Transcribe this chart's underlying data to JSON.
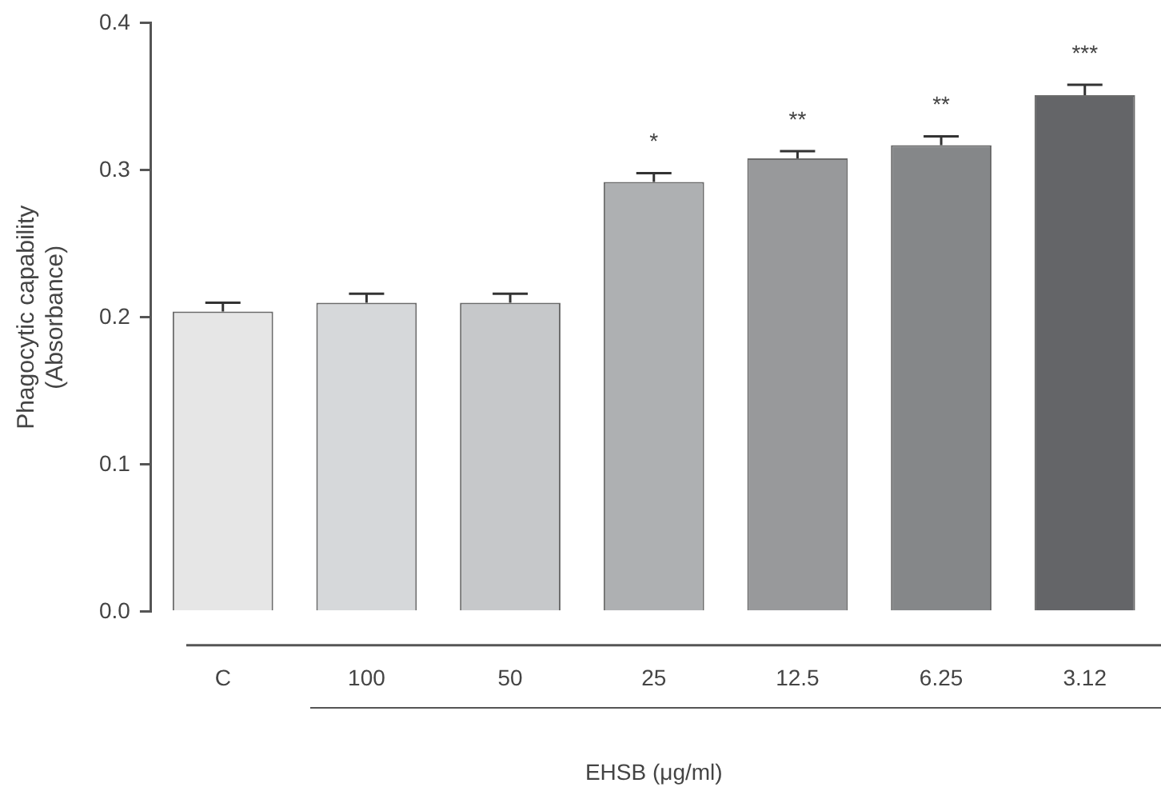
{
  "chart_data": {
    "type": "bar",
    "xlabel": "EHSB (μg/ml)",
    "ylabel": "Phagocytic capability\n(Absorbance)",
    "categories": [
      "C",
      "100",
      "50",
      "25",
      "12.5",
      "6.25",
      "3.12"
    ],
    "values": [
      0.204,
      0.21,
      0.21,
      0.292,
      0.308,
      0.317,
      0.351
    ],
    "errors": [
      [
        0.204,
        0.21
      ],
      [
        0.21,
        0.216
      ],
      [
        0.21,
        0.216
      ],
      [
        0.292,
        0.298
      ],
      [
        0.308,
        0.313
      ],
      [
        0.317,
        0.323
      ],
      [
        0.351,
        0.358
      ]
    ],
    "colors": [
      "#e6e6e6",
      "#d6d8da",
      "#c6c8ca",
      "#aeb0b2",
      "#98999b",
      "#858789",
      "#646568"
    ],
    "ylim": [
      0,
      0.4
    ],
    "yticks": [
      {
        "value": 0,
        "label": "0.0"
      },
      {
        "value": 0.1,
        "label": "0.1"
      },
      {
        "value": 0.2,
        "label": "0.2"
      },
      {
        "value": 0.3,
        "label": "0.3"
      },
      {
        "value": 0.4,
        "label": "0.4"
      }
    ],
    "annotations": [
      {
        "text": "*",
        "x": "25",
        "y": 0.298
      },
      {
        "text": "**",
        "x": "12.5",
        "y": 0.313
      },
      {
        "text": "**",
        "x": "6.25",
        "y": 0.323
      },
      {
        "text": "***",
        "x": "3.12",
        "y": 0.358
      }
    ],
    "grid": false,
    "legend": false
  }
}
